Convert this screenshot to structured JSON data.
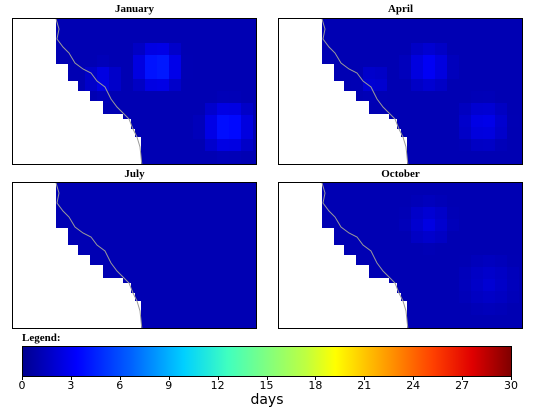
{
  "chart_data": {
    "type": "heatmap",
    "units": "days",
    "legend_title": "Legend:",
    "colorbar": {
      "min": 0,
      "max": 30,
      "ticks": [
        "0",
        "3",
        "6",
        "9",
        "12",
        "15",
        "18",
        "21",
        "24",
        "27",
        "30"
      ],
      "colormap": "jet"
    },
    "panels": [
      {
        "title": "January",
        "hotspots": [
          {
            "value": 5.5
          },
          {
            "value": 5.0
          },
          {
            "value": 3.5
          }
        ]
      },
      {
        "title": "April",
        "hotspots": [
          {
            "value": 4.0
          },
          {
            "value": 3.5
          },
          {
            "value": 3.0
          }
        ]
      },
      {
        "title": "July",
        "hotspots": [
          {
            "value": 1.5
          }
        ]
      },
      {
        "title": "October",
        "hotspots": [
          {
            "value": 3.0
          },
          {
            "value": 2.5
          }
        ]
      }
    ],
    "base_value": 1.5
  }
}
